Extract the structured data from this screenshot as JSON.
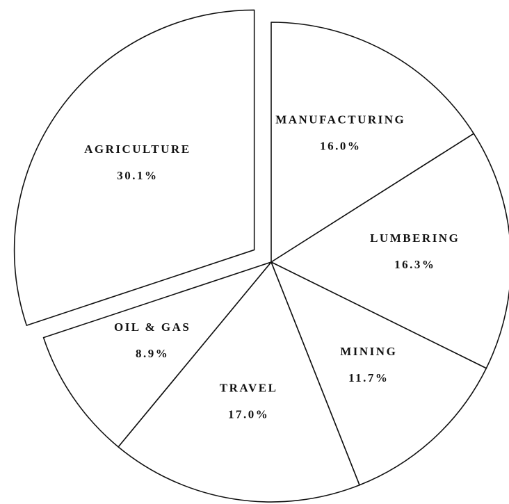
{
  "chart_data": {
    "type": "pie",
    "categories": [
      "MANUFACTURING",
      "LUMBERING",
      "MINING",
      "TRAVEL",
      "OIL & GAS",
      "AGRICULTURE"
    ],
    "values": [
      16.0,
      16.3,
      11.7,
      17.0,
      8.9,
      30.1
    ],
    "value_labels": [
      "16.0%",
      "16.3%",
      "11.7%",
      "17.0%",
      "8.9%",
      "30.1%"
    ],
    "exploded": [
      false,
      false,
      false,
      false,
      false,
      true
    ],
    "color": "#ffffff"
  }
}
